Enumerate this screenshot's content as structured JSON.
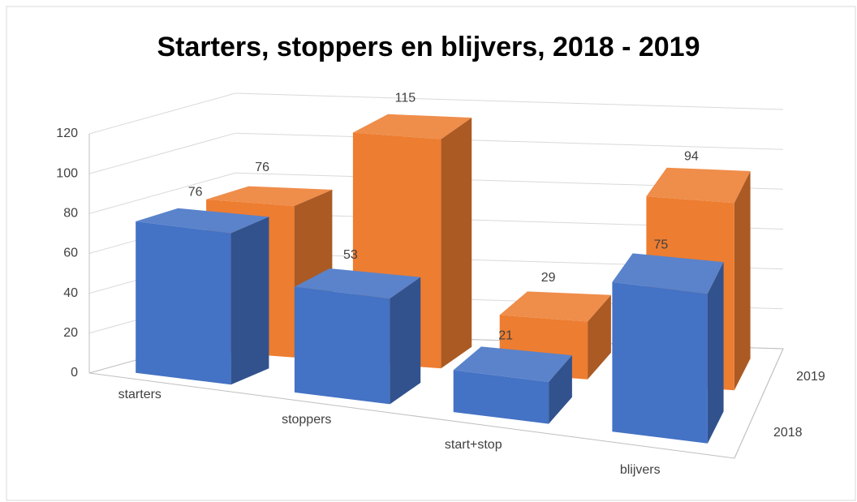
{
  "chart_data": {
    "type": "bar3d",
    "title": "Starters, stoppers en blijvers, 2018 - 2019",
    "categories": [
      "starters",
      "stoppers",
      "start+stop",
      "blijvers"
    ],
    "series": [
      {
        "name": "2018",
        "color": "#4472c4",
        "values": [
          76,
          53,
          21,
          75
        ]
      },
      {
        "name": "2019",
        "color": "#ed7d31",
        "values": [
          76,
          115,
          29,
          94
        ]
      }
    ],
    "ylim": [
      0,
      120
    ],
    "yticks": [
      0,
      20,
      40,
      60,
      80,
      100,
      120
    ],
    "grid": true
  }
}
